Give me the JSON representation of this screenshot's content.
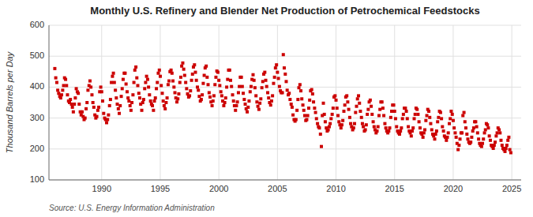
{
  "chart_data": {
    "type": "scatter",
    "title": "Monthly U.S. Refinery and Blender Net Production of Petrochemical Feedstocks",
    "ylabel": "Thousand Barrels per Day",
    "source": "Source: U.S. Energy Information Administration",
    "color": "#cc0000",
    "marker": "square",
    "grid": true,
    "xlim": [
      1985.5,
      2025.8
    ],
    "xticks": [
      1990,
      1995,
      2000,
      2005,
      2010,
      2015,
      2020,
      2025
    ],
    "ylim": [
      100,
      600
    ],
    "yticks": [
      100,
      200,
      300,
      400,
      500,
      600
    ],
    "x": [
      1986.0,
      1986.08,
      1986.17,
      1986.25,
      1986.33,
      1986.42,
      1986.5,
      1986.58,
      1986.67,
      1986.75,
      1986.83,
      1986.92,
      1987.0,
      1987.08,
      1987.17,
      1987.25,
      1987.33,
      1987.42,
      1987.5,
      1987.58,
      1987.67,
      1987.75,
      1987.83,
      1987.92,
      1988.0,
      1988.08,
      1988.17,
      1988.25,
      1988.33,
      1988.42,
      1988.5,
      1988.58,
      1988.67,
      1988.75,
      1988.83,
      1988.92,
      1989.0,
      1989.08,
      1989.17,
      1989.25,
      1989.33,
      1989.42,
      1989.5,
      1989.58,
      1989.67,
      1989.75,
      1989.83,
      1989.92,
      1990.0,
      1990.08,
      1990.17,
      1990.25,
      1990.33,
      1990.42,
      1990.5,
      1990.58,
      1990.67,
      1990.75,
      1990.83,
      1990.92,
      1991.0,
      1991.08,
      1991.17,
      1991.25,
      1991.33,
      1991.42,
      1991.5,
      1991.58,
      1991.67,
      1991.75,
      1991.83,
      1991.92,
      1992.0,
      1992.08,
      1992.17,
      1992.25,
      1992.33,
      1992.42,
      1992.5,
      1992.58,
      1992.67,
      1992.75,
      1992.83,
      1992.92,
      1993.0,
      1993.08,
      1993.17,
      1993.25,
      1993.33,
      1993.42,
      1993.5,
      1993.58,
      1993.67,
      1993.75,
      1993.83,
      1993.92,
      1994.0,
      1994.08,
      1994.17,
      1994.25,
      1994.33,
      1994.42,
      1994.5,
      1994.58,
      1994.67,
      1994.75,
      1994.83,
      1994.92,
      1995.0,
      1995.08,
      1995.17,
      1995.25,
      1995.33,
      1995.42,
      1995.5,
      1995.58,
      1995.67,
      1995.75,
      1995.83,
      1995.92,
      1996.0,
      1996.08,
      1996.17,
      1996.25,
      1996.33,
      1996.42,
      1996.5,
      1996.58,
      1996.67,
      1996.75,
      1996.83,
      1996.92,
      1997.0,
      1997.08,
      1997.17,
      1997.25,
      1997.33,
      1997.42,
      1997.5,
      1997.58,
      1997.67,
      1997.75,
      1997.83,
      1997.92,
      1998.0,
      1998.08,
      1998.17,
      1998.25,
      1998.33,
      1998.42,
      1998.5,
      1998.58,
      1998.67,
      1998.75,
      1998.83,
      1998.92,
      1999.0,
      1999.08,
      1999.17,
      1999.25,
      1999.33,
      1999.42,
      1999.5,
      1999.58,
      1999.67,
      1999.75,
      1999.83,
      1999.92,
      2000.0,
      2000.08,
      2000.17,
      2000.25,
      2000.33,
      2000.42,
      2000.5,
      2000.58,
      2000.67,
      2000.75,
      2000.83,
      2000.92,
      2001.0,
      2001.08,
      2001.17,
      2001.25,
      2001.33,
      2001.42,
      2001.5,
      2001.58,
      2001.67,
      2001.75,
      2001.83,
      2001.92,
      2002.0,
      2002.08,
      2002.17,
      2002.25,
      2002.33,
      2002.42,
      2002.5,
      2002.58,
      2002.67,
      2002.75,
      2002.83,
      2002.92,
      2003.0,
      2003.08,
      2003.17,
      2003.25,
      2003.33,
      2003.42,
      2003.5,
      2003.58,
      2003.67,
      2003.75,
      2003.83,
      2003.92,
      2004.0,
      2004.08,
      2004.17,
      2004.25,
      2004.33,
      2004.42,
      2004.5,
      2004.58,
      2004.67,
      2004.75,
      2004.83,
      2004.92,
      2005.0,
      2005.08,
      2005.17,
      2005.25,
      2005.33,
      2005.42,
      2005.5,
      2005.58,
      2005.67,
      2005.75,
      2005.83,
      2005.92,
      2006.0,
      2006.08,
      2006.17,
      2006.25,
      2006.33,
      2006.42,
      2006.5,
      2006.58,
      2006.67,
      2006.75,
      2006.83,
      2006.92,
      2007.0,
      2007.08,
      2007.17,
      2007.25,
      2007.33,
      2007.42,
      2007.5,
      2007.58,
      2007.67,
      2007.75,
      2007.83,
      2007.92,
      2008.0,
      2008.08,
      2008.17,
      2008.25,
      2008.33,
      2008.42,
      2008.5,
      2008.58,
      2008.67,
      2008.75,
      2008.83,
      2008.92,
      2009.0,
      2009.08,
      2009.17,
      2009.25,
      2009.33,
      2009.42,
      2009.5,
      2009.58,
      2009.67,
      2009.75,
      2009.83,
      2009.92,
      2010.0,
      2010.08,
      2010.17,
      2010.25,
      2010.33,
      2010.42,
      2010.5,
      2010.58,
      2010.67,
      2010.75,
      2010.83,
      2010.92,
      2011.0,
      2011.08,
      2011.17,
      2011.25,
      2011.33,
      2011.42,
      2011.5,
      2011.58,
      2011.67,
      2011.75,
      2011.83,
      2011.92,
      2012.0,
      2012.08,
      2012.17,
      2012.25,
      2012.33,
      2012.42,
      2012.5,
      2012.58,
      2012.67,
      2012.75,
      2012.83,
      2012.92,
      2013.0,
      2013.08,
      2013.17,
      2013.25,
      2013.33,
      2013.42,
      2013.5,
      2013.58,
      2013.67,
      2013.75,
      2013.83,
      2013.92,
      2014.0,
      2014.08,
      2014.17,
      2014.25,
      2014.33,
      2014.42,
      2014.5,
      2014.58,
      2014.67,
      2014.75,
      2014.83,
      2014.92,
      2015.0,
      2015.08,
      2015.17,
      2015.25,
      2015.33,
      2015.42,
      2015.5,
      2015.58,
      2015.67,
      2015.75,
      2015.83,
      2015.92,
      2016.0,
      2016.08,
      2016.17,
      2016.25,
      2016.33,
      2016.42,
      2016.5,
      2016.58,
      2016.67,
      2016.75,
      2016.83,
      2016.92,
      2017.0,
      2017.08,
      2017.17,
      2017.25,
      2017.33,
      2017.42,
      2017.5,
      2017.58,
      2017.67,
      2017.75,
      2017.83,
      2017.92,
      2018.0,
      2018.08,
      2018.17,
      2018.25,
      2018.33,
      2018.42,
      2018.5,
      2018.58,
      2018.67,
      2018.75,
      2018.83,
      2018.92,
      2019.0,
      2019.08,
      2019.17,
      2019.25,
      2019.33,
      2019.42,
      2019.5,
      2019.58,
      2019.67,
      2019.75,
      2019.83,
      2019.92,
      2020.0,
      2020.08,
      2020.17,
      2020.25,
      2020.33,
      2020.42,
      2020.5,
      2020.58,
      2020.67,
      2020.75,
      2020.83,
      2020.92,
      2021.0,
      2021.08,
      2021.17,
      2021.25,
      2021.33,
      2021.42,
      2021.5,
      2021.58,
      2021.67,
      2021.75,
      2021.83,
      2021.92,
      2022.0,
      2022.08,
      2022.17,
      2022.25,
      2022.33,
      2022.42,
      2022.5,
      2022.58,
      2022.67,
      2022.75,
      2022.83,
      2022.92,
      2023.0,
      2023.08,
      2023.17,
      2023.25,
      2023.33,
      2023.42,
      2023.5,
      2023.58,
      2023.67,
      2023.75,
      2023.83,
      2023.92,
      2024.0,
      2024.08,
      2024.17,
      2024.25,
      2024.33,
      2024.42,
      2024.5,
      2024.58,
      2024.67,
      2024.75,
      2024.83,
      2024.92
    ],
    "values": [
      460,
      430,
      415,
      390,
      380,
      370,
      365,
      375,
      390,
      405,
      430,
      425,
      405,
      375,
      355,
      350,
      360,
      345,
      335,
      320,
      345,
      365,
      395,
      385,
      380,
      345,
      320,
      310,
      320,
      305,
      295,
      300,
      330,
      350,
      390,
      405,
      420,
      400,
      375,
      350,
      335,
      310,
      300,
      305,
      325,
      335,
      385,
      400,
      385,
      355,
      315,
      300,
      295,
      285,
      295,
      310,
      340,
      360,
      415,
      435,
      445,
      415,
      390,
      365,
      345,
      330,
      315,
      340,
      370,
      395,
      425,
      445,
      445,
      410,
      385,
      365,
      355,
      340,
      325,
      350,
      375,
      415,
      455,
      465,
      430,
      405,
      380,
      365,
      345,
      325,
      350,
      360,
      395,
      415,
      435,
      425,
      400,
      375,
      355,
      345,
      340,
      325,
      355,
      365,
      395,
      415,
      445,
      455,
      435,
      405,
      380,
      355,
      340,
      330,
      350,
      365,
      408,
      420,
      450,
      455,
      445,
      420,
      400,
      382,
      365,
      352,
      362,
      378,
      415,
      432,
      468,
      478,
      458,
      438,
      415,
      395,
      378,
      368,
      372,
      388,
      422,
      442,
      465,
      472,
      448,
      422,
      400,
      390,
      370,
      355,
      360,
      375,
      412,
      438,
      462,
      468,
      432,
      408,
      382,
      368,
      352,
      340,
      355,
      372,
      408,
      432,
      452,
      448,
      422,
      405,
      385,
      372,
      355,
      340,
      350,
      365,
      400,
      425,
      455,
      455,
      422,
      402,
      375,
      355,
      340,
      325,
      340,
      352,
      382,
      402,
      432,
      432,
      402,
      380,
      360,
      345,
      330,
      320,
      335,
      355,
      385,
      402,
      425,
      440,
      422,
      398,
      372,
      352,
      338,
      328,
      348,
      362,
      398,
      418,
      442,
      448,
      422,
      402,
      382,
      365,
      350,
      342,
      355,
      372,
      412,
      432,
      462,
      472,
      448,
      428,
      402,
      388,
      382,
      382,
      505,
      462,
      442,
      418,
      390,
      375,
      380,
      360,
      345,
      335,
      310,
      295,
      290,
      295,
      325,
      360,
      398,
      408,
      388,
      362,
      342,
      325,
      308,
      292,
      295,
      308,
      332,
      358,
      388,
      392,
      378,
      352,
      332,
      318,
      298,
      282,
      272,
      268,
      248,
      208,
      308,
      348,
      312,
      288,
      268,
      258,
      262,
      272,
      282,
      298,
      312,
      332,
      368,
      372,
      358,
      332,
      308,
      288,
      278,
      268,
      278,
      292,
      322,
      342,
      368,
      372,
      352,
      328,
      302,
      282,
      272,
      262,
      268,
      282,
      318,
      338,
      362,
      372,
      348,
      322,
      302,
      282,
      272,
      258,
      262,
      278,
      312,
      328,
      352,
      358,
      338,
      312,
      288,
      272,
      262,
      252,
      258,
      272,
      308,
      328,
      352,
      352,
      332,
      308,
      282,
      268,
      258,
      252,
      258,
      268,
      302,
      322,
      342,
      342,
      322,
      298,
      272,
      258,
      252,
      248,
      258,
      268,
      298,
      312,
      332,
      332,
      322,
      298,
      272,
      258,
      252,
      242,
      258,
      268,
      298,
      312,
      332,
      328,
      312,
      288,
      268,
      252,
      248,
      238,
      252,
      262,
      292,
      308,
      328,
      322,
      302,
      282,
      262,
      248,
      242,
      232,
      248,
      258,
      288,
      302,
      322,
      318,
      298,
      272,
      258,
      242,
      238,
      228,
      238,
      252,
      282,
      298,
      322,
      312,
      292,
      268,
      252,
      238,
      218,
      198,
      212,
      232,
      252,
      252,
      308,
      318,
      288,
      268,
      248,
      232,
      222,
      218,
      222,
      238,
      258,
      268,
      288,
      288,
      272,
      252,
      232,
      218,
      212,
      208,
      218,
      232,
      252,
      262,
      282,
      278,
      268,
      242,
      228,
      212,
      208,
      202,
      212,
      222,
      242,
      252,
      268,
      262,
      252,
      228,
      212,
      202,
      198,
      192,
      202,
      212,
      228,
      238,
      198,
      188
    ]
  }
}
